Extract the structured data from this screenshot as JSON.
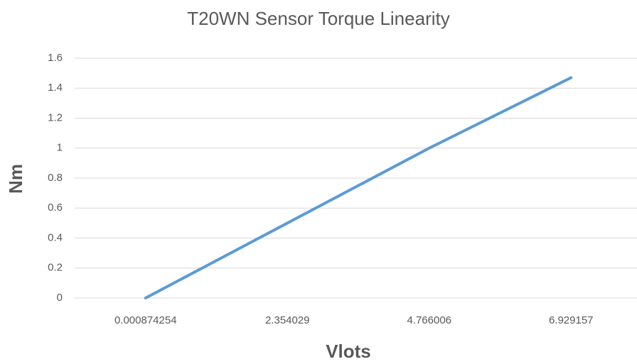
{
  "chart_data": {
    "type": "line",
    "title": "T20WN Sensor Torque Linearity",
    "x_label": "Vlots",
    "y_label": "Nm",
    "categories": [
      "0.000874254",
      "2.354029",
      "4.766006",
      "6.929157"
    ],
    "series": [
      {
        "name": "Nm",
        "color": "#5b9bd5",
        "values": [
          0,
          0.5,
          1.0,
          1.47
        ]
      }
    ],
    "ylim": [
      0,
      1.6
    ],
    "yticks": [
      0,
      0.2,
      0.4,
      0.6,
      0.8,
      1,
      1.2,
      1.4,
      1.6
    ],
    "grid": true
  }
}
